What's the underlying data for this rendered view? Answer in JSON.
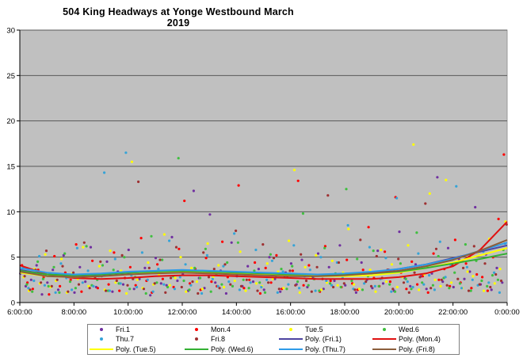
{
  "title": "504 King Headways at Yonge Westbound March 2019",
  "colors": {
    "plot_background": "#C0C0C0",
    "gridline": "#595959",
    "axis": "#000000",
    "text": "#000000",
    "legend_border": "#7F7F7F"
  },
  "chart_data": {
    "type": "scatter",
    "title": "504 King Headways at Yonge Westbound March 2019",
    "xlabel": "",
    "ylabel": "",
    "x_axis": {
      "tick_labels": [
        "6:00:00",
        "8:00:00",
        "10:00:00",
        "12:00:00",
        "14:00:00",
        "16:00:00",
        "18:00:00",
        "20:00:00",
        "22:00:00",
        "0:00:00"
      ],
      "tick_hours": [
        6,
        8,
        10,
        12,
        14,
        16,
        18,
        20,
        22,
        24
      ],
      "range_hours": [
        6,
        24
      ]
    },
    "y_axis": {
      "tick_labels": [
        "0",
        "5",
        "10",
        "15",
        "20",
        "25",
        "30"
      ],
      "ticks": [
        0,
        5,
        10,
        15,
        20,
        25,
        30
      ],
      "range": [
        0,
        30
      ],
      "gridlines": [
        5,
        10,
        15,
        20,
        25,
        30
      ]
    },
    "legend_position": "bottom",
    "series": [
      {
        "name": "Fri.1",
        "color": "#7030A0",
        "marker": "dot",
        "t_start": 6.02,
        "t_step": 0.2,
        "values": [
          3.2,
          1.8,
          2.5,
          4.1,
          0.9,
          2.2,
          3.6,
          1.4,
          5.2,
          2.8,
          1.1,
          3.9,
          2.3,
          6.1,
          1.7,
          2.9,
          4.5,
          1.2,
          3.4,
          2.0,
          5.8,
          1.5,
          2.6,
          3.8,
          0.8,
          4.9,
          2.1,
          1.9,
          7.2,
          2.4,
          3.1,
          1.3,
          12.3,
          2.7,
          1.6,
          9.7,
          2.2,
          3.5,
          1.0,
          6.6,
          2.9,
          1.8,
          4.0,
          2.3,
          3.7,
          1.4,
          5.0,
          2.6,
          1.2,
          3.3,
          4.3,
          2.0,
          4.7,
          1.7,
          2.8,
          5.4,
          1.5,
          3.9,
          2.4,
          6.3,
          1.9,
          3.0,
          1.1,
          4.4,
          2.5,
          1.6,
          5.7,
          2.1,
          3.6,
          1.3,
          7.8,
          2.7,
          1.8,
          4.2,
          2.9,
          1.5,
          3.2,
          13.8,
          2.3,
          6.0,
          1.7,
          4.8,
          2.6,
          3.4,
          10.5,
          2.0,
          5.3,
          1.4,
          3.8,
          2.2
        ]
      },
      {
        "name": "Mon.4",
        "color": "#FF0000",
        "marker": "dot",
        "t_start": 6.08,
        "t_step": 0.2,
        "values": [
          4.1,
          2.2,
          1.5,
          3.6,
          2.8,
          0.9,
          5.1,
          1.8,
          3.3,
          2.5,
          6.4,
          1.2,
          2.9,
          4.6,
          1.6,
          3.1,
          2.0,
          5.5,
          1.3,
          2.7,
          3.9,
          1.9,
          7.1,
          2.4,
          1.1,
          4.2,
          2.6,
          3.4,
          1.7,
          5.9,
          11.2,
          2.1,
          3.7,
          1.4,
          4.9,
          2.3,
          1.8,
          6.7,
          2.8,
          3.2,
          12.9,
          1.6,
          2.5,
          4.4,
          1.0,
          3.8,
          2.2,
          5.2,
          1.5,
          2.9,
          3.5,
          13.4,
          1.9,
          4.1,
          2.6,
          1.2,
          6.2,
          2.4,
          3.0,
          1.7,
          4.7,
          2.1,
          1.4,
          3.6,
          8.3,
          2.7,
          1.8,
          5.6,
          2.3,
          11.6,
          3.3,
          1.5,
          4.5,
          2.0,
          2.9,
          1.1,
          5.4,
          2.5,
          3.7,
          1.8,
          6.9,
          2.2,
          4.3,
          1.6,
          3.1,
          2.8,
          1.3,
          5.0,
          9.2,
          16.3
        ]
      },
      {
        "name": "Tue.5",
        "color": "#FFFF00",
        "marker": "dot",
        "t_start": 6.14,
        "t_step": 0.2,
        "values": [
          2.8,
          1.3,
          3.7,
          2.1,
          5.3,
          1.7,
          2.4,
          4.8,
          1.1,
          3.2,
          2.6,
          6.1,
          1.8,
          2.9,
          4.0,
          1.4,
          5.7,
          2.2,
          3.5,
          1.0,
          15.5,
          2.5,
          1.6,
          4.4,
          2.0,
          3.1,
          7.5,
          1.9,
          2.7,
          5.0,
          1.2,
          3.8,
          2.3,
          1.5,
          6.5,
          2.8,
          4.1,
          1.7,
          3.0,
          2.4,
          5.6,
          1.3,
          2.9,
          2.1,
          1.8,
          4.3,
          2.6,
          3.4,
          1.6,
          6.8,
          14.6,
          1.1,
          3.9,
          2.7,
          5.2,
          1.4,
          2.2,
          4.6,
          1.9,
          3.3,
          8.1,
          2.0,
          1.5,
          2.6,
          3.6,
          1.2,
          5.8,
          2.3,
          4.2,
          1.7,
          2.8,
          6.3,
          17.4,
          1.4,
          3.1,
          12.0,
          2.5,
          1.8,
          13.5,
          2.2,
          4.9,
          1.6,
          3.4,
          2.9,
          5.5,
          1.3,
          7.0,
          2.1,
          3.7,
          8.9
        ]
      },
      {
        "name": "Wed.6",
        "color": "#3FBF3F",
        "marker": "dot",
        "t_start": 6.06,
        "t_step": 0.2,
        "values": [
          3.4,
          2.0,
          1.2,
          4.5,
          2.6,
          1.8,
          3.9,
          1.1,
          5.4,
          2.3,
          1.6,
          3.0,
          6.2,
          1.9,
          2.5,
          4.1,
          1.3,
          3.6,
          2.1,
          5.0,
          1.5,
          2.8,
          3.3,
          1.0,
          7.3,
          2.2,
          4.7,
          1.7,
          2.9,
          15.9,
          2.4,
          1.4,
          3.8,
          2.7,
          5.9,
          1.2,
          3.1,
          2.0,
          4.4,
          1.8,
          6.6,
          2.5,
          1.6,
          3.5,
          2.2,
          1.1,
          5.3,
          2.8,
          3.7,
          1.5,
          4.0,
          2.3,
          9.8,
          1.9,
          2.6,
          1.3,
          6.0,
          2.1,
          3.2,
          1.7,
          12.5,
          2.4,
          4.8,
          1.4,
          2.9,
          5.7,
          1.8,
          3.4,
          2.0,
          1.2,
          4.3,
          2.6,
          1.5,
          7.7,
          2.2,
          3.9,
          1.9,
          5.1,
          2.7,
          1.6,
          3.3,
          2.1,
          6.4,
          1.3,
          4.6,
          2.4,
          1.8,
          3.0,
          2.5,
          5.8
        ]
      },
      {
        "name": "Thu.7",
        "color": "#35A3D7",
        "marker": "dot",
        "t_start": 6.12,
        "t_step": 0.2,
        "values": [
          3.8,
          1.6,
          2.4,
          5.1,
          1.9,
          3.2,
          1.1,
          4.3,
          2.7,
          1.4,
          6.0,
          2.2,
          3.5,
          1.8,
          2.9,
          14.3,
          1.3,
          4.8,
          2.1,
          16.5,
          3.0,
          1.7,
          5.5,
          2.5,
          1.2,
          3.7,
          2.0,
          6.8,
          1.5,
          2.8,
          4.2,
          1.9,
          3.3,
          1.0,
          5.2,
          2.6,
          1.8,
          4.0,
          2.3,
          7.6,
          1.4,
          3.1,
          2.2,
          5.8,
          1.7,
          2.5,
          4.6,
          1.1,
          3.4,
          2.0,
          6.3,
          1.6,
          2.9,
          3.6,
          1.3,
          5.0,
          2.4,
          1.9,
          4.4,
          2.7,
          8.5,
          1.5,
          3.2,
          2.1,
          6.1,
          1.8,
          2.6,
          4.9,
          1.2,
          11.5,
          3.5,
          2.3,
          1.7,
          5.4,
          2.0,
          3.0,
          1.4,
          6.7,
          2.8,
          4.1,
          12.8,
          1.6,
          3.9,
          2.5,
          1.9,
          5.6,
          2.2,
          3.3,
          1.1,
          6.5
        ]
      },
      {
        "name": "Fri.8",
        "color": "#9E3132",
        "marker": "dot",
        "t_start": 6.18,
        "t_step": 0.2,
        "values": [
          2.9,
          1.4,
          3.6,
          2.2,
          5.7,
          1.8,
          2.5,
          4.0,
          1.2,
          3.3,
          2.0,
          6.6,
          1.6,
          2.8,
          4.5,
          1.3,
          3.1,
          2.4,
          5.2,
          1.9,
          2.6,
          13.3,
          1.5,
          3.8,
          2.1,
          4.7,
          1.1,
          2.7,
          6.1,
          1.7,
          3.4,
          2.3,
          1.0,
          5.5,
          2.8,
          3.7,
          1.6,
          4.2,
          2.0,
          7.9,
          1.8,
          2.5,
          3.2,
          1.3,
          6.4,
          2.2,
          4.9,
          1.5,
          2.9,
          3.5,
          1.9,
          5.3,
          2.4,
          1.2,
          3.9,
          2.6,
          11.8,
          1.7,
          4.4,
          2.1,
          3.0,
          1.4,
          6.9,
          2.3,
          1.8,
          5.1,
          2.7,
          3.6,
          1.5,
          4.8,
          2.2,
          1.1,
          3.3,
          2.8,
          10.9,
          1.6,
          5.9,
          2.5,
          1.9,
          4.1,
          2.6,
          3.8,
          1.3,
          6.2,
          2.0,
          4.3,
          1.7,
          3.1,
          2.4,
          8.6
        ]
      }
    ],
    "trendlines": [
      {
        "name": "Poly. (Fri.1)",
        "color": "#4E44A0",
        "t_start": 6,
        "t_step": 1,
        "values": [
          3.6,
          3.1,
          2.9,
          3.0,
          3.2,
          3.4,
          3.4,
          3.3,
          3.2,
          3.1,
          3.0,
          3.0,
          3.1,
          3.3,
          3.7,
          4.2,
          4.9,
          5.6,
          6.3
        ]
      },
      {
        "name": "Poly. (Mon.4)",
        "color": "#E01010",
        "t_start": 6,
        "t_step": 1,
        "values": [
          4.1,
          3.1,
          2.7,
          2.6,
          2.7,
          2.9,
          3.0,
          3.0,
          2.9,
          2.8,
          2.7,
          2.6,
          2.6,
          2.6,
          2.8,
          3.2,
          4.0,
          5.8,
          8.9
        ]
      },
      {
        "name": "Poly. (Tue.5)",
        "color": "#FFFF00",
        "t_start": 6,
        "t_step": 1,
        "values": [
          3.3,
          2.9,
          2.8,
          2.9,
          3.1,
          3.3,
          3.4,
          3.3,
          3.2,
          3.1,
          3.0,
          2.9,
          2.9,
          3.0,
          3.3,
          3.8,
          4.4,
          5.2,
          6.0
        ]
      },
      {
        "name": "Poly. (Wed.6)",
        "color": "#33B033",
        "t_start": 6,
        "t_step": 1,
        "values": [
          3.5,
          3.1,
          3.0,
          3.1,
          3.3,
          3.4,
          3.5,
          3.4,
          3.3,
          3.2,
          3.1,
          3.1,
          3.1,
          3.2,
          3.4,
          3.8,
          4.3,
          4.8,
          5.4
        ]
      },
      {
        "name": "Poly. (Thu.7)",
        "color": "#2D9BE8",
        "t_start": 6,
        "t_step": 1,
        "values": [
          3.8,
          3.3,
          3.1,
          3.2,
          3.4,
          3.5,
          3.6,
          3.5,
          3.4,
          3.3,
          3.2,
          3.1,
          3.2,
          3.4,
          3.7,
          4.2,
          4.8,
          5.7,
          6.6
        ]
      },
      {
        "name": "Poly. (Fri.8)",
        "color": "#8B5E3C",
        "t_start": 6,
        "t_step": 1,
        "values": [
          3.4,
          2.9,
          2.8,
          2.9,
          3.1,
          3.2,
          3.3,
          3.2,
          3.1,
          3.0,
          2.9,
          2.9,
          3.0,
          3.2,
          3.5,
          4.0,
          4.7,
          5.7,
          6.9
        ]
      }
    ],
    "legend_entries": [
      {
        "label": "Fri.1",
        "swatch": "dot",
        "color": "#7030A0"
      },
      {
        "label": "Mon.4",
        "swatch": "dot",
        "color": "#FF0000"
      },
      {
        "label": "Tue.5",
        "swatch": "dot",
        "color": "#FFFF00"
      },
      {
        "label": "Wed.6",
        "swatch": "dot",
        "color": "#3FBF3F"
      },
      {
        "label": "Thu.7",
        "swatch": "dot",
        "color": "#35A3D7"
      },
      {
        "label": "Fri.8",
        "swatch": "dot",
        "color": "#9E3132"
      },
      {
        "label": "Poly. (Fri.1)",
        "swatch": "line",
        "color": "#4E44A0"
      },
      {
        "label": "Poly. (Mon.4)",
        "swatch": "line",
        "color": "#E01010"
      },
      {
        "label": "Poly. (Tue.5)",
        "swatch": "line",
        "color": "#FFFF00"
      },
      {
        "label": "Poly. (Wed.6)",
        "swatch": "line",
        "color": "#33B033"
      },
      {
        "label": "Poly. (Thu.7)",
        "swatch": "line",
        "color": "#2D9BE8"
      },
      {
        "label": "Poly. (Fri.8)",
        "swatch": "line",
        "color": "#8B5E3C"
      }
    ]
  }
}
